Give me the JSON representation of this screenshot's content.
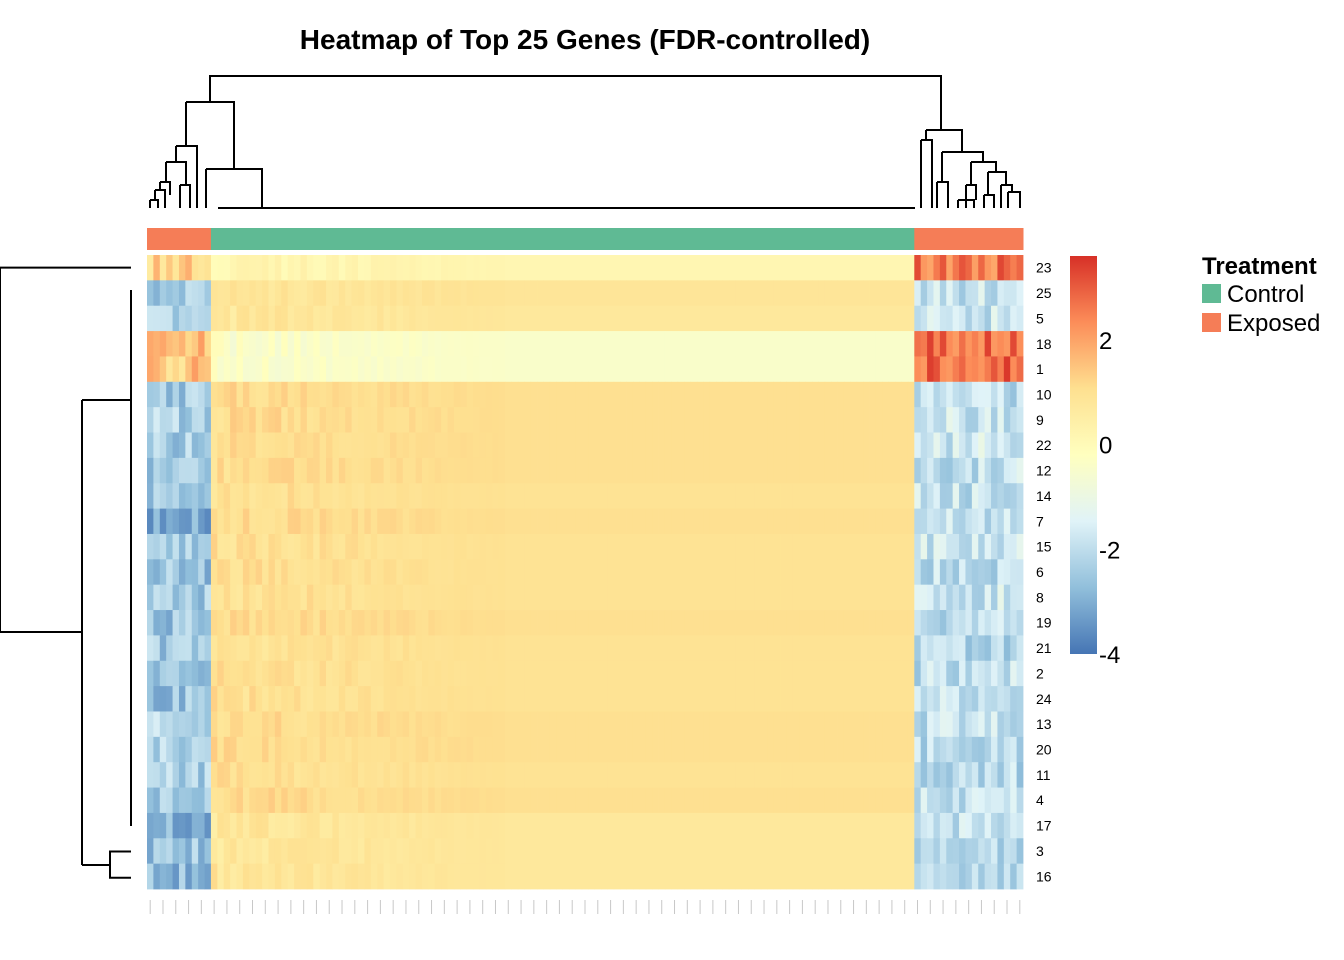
{
  "chart_data": {
    "type": "heatmap",
    "title": "Heatmap of Top 25 Genes (FDR-controlled)",
    "row_labels": [
      "23",
      "25",
      "5",
      "18",
      "1",
      "10",
      "9",
      "22",
      "12",
      "14",
      "7",
      "15",
      "6",
      "8",
      "19",
      "21",
      "2",
      "24",
      "13",
      "20",
      "11",
      "4",
      "17",
      "3",
      "16"
    ],
    "column_groups": [
      {
        "treatment": "Exposed",
        "count": 10
      },
      {
        "treatment": "Control",
        "count": 110
      },
      {
        "treatment": "Exposed",
        "count": 17
      }
    ],
    "row_means_by_group": {
      "23": [
        1.3,
        0.2,
        2.6
      ],
      "25": [
        -2.4,
        0.9,
        -1.9
      ],
      "5": [
        -2.2,
        0.8,
        -1.8
      ],
      "18": [
        1.6,
        -0.4,
        2.8
      ],
      "1": [
        1.4,
        -0.4,
        2.8
      ],
      "10": [
        -2.5,
        1.1,
        -2.0
      ],
      "9": [
        -2.3,
        1.1,
        -1.8
      ],
      "22": [
        -2.4,
        1.1,
        -1.7
      ],
      "12": [
        -2.6,
        1.1,
        -1.9
      ],
      "14": [
        -2.6,
        1.0,
        -1.9
      ],
      "7": [
        -3.0,
        1.1,
        -1.8
      ],
      "15": [
        -2.5,
        1.0,
        -1.8
      ],
      "6": [
        -2.6,
        1.0,
        -2.0
      ],
      "8": [
        -2.5,
        1.0,
        -1.8
      ],
      "19": [
        -2.5,
        1.1,
        -2.0
      ],
      "21": [
        -2.4,
        1.0,
        -2.2
      ],
      "2": [
        -2.5,
        1.0,
        -2.0
      ],
      "24": [
        -2.6,
        1.0,
        -2.0
      ],
      "13": [
        -2.2,
        1.1,
        -2.0
      ],
      "20": [
        -2.3,
        1.1,
        -2.1
      ],
      "11": [
        -2.3,
        1.0,
        -2.1
      ],
      "4": [
        -2.4,
        1.1,
        -2.0
      ],
      "17": [
        -2.9,
        0.8,
        -2.0
      ],
      "3": [
        -2.6,
        0.8,
        -2.1
      ],
      "16": [
        -2.8,
        0.8,
        -2.0
      ]
    },
    "color_scale": {
      "min": -4,
      "max": 3.6,
      "ticks": [
        "2",
        "0",
        "-2",
        "-4"
      ],
      "tick_values": [
        2,
        0,
        -2,
        -4
      ],
      "colors": [
        "#4575b4",
        "#91bfdb",
        "#e0f3f8",
        "#ffffbf",
        "#fee090",
        "#fc8d59",
        "#d73027"
      ]
    },
    "annotation": {
      "title": "Treatment",
      "levels": [
        {
          "name": "Control",
          "color": "#5fba94"
        },
        {
          "name": "Exposed",
          "color": "#f57d57"
        }
      ]
    },
    "legend_position": "right"
  }
}
